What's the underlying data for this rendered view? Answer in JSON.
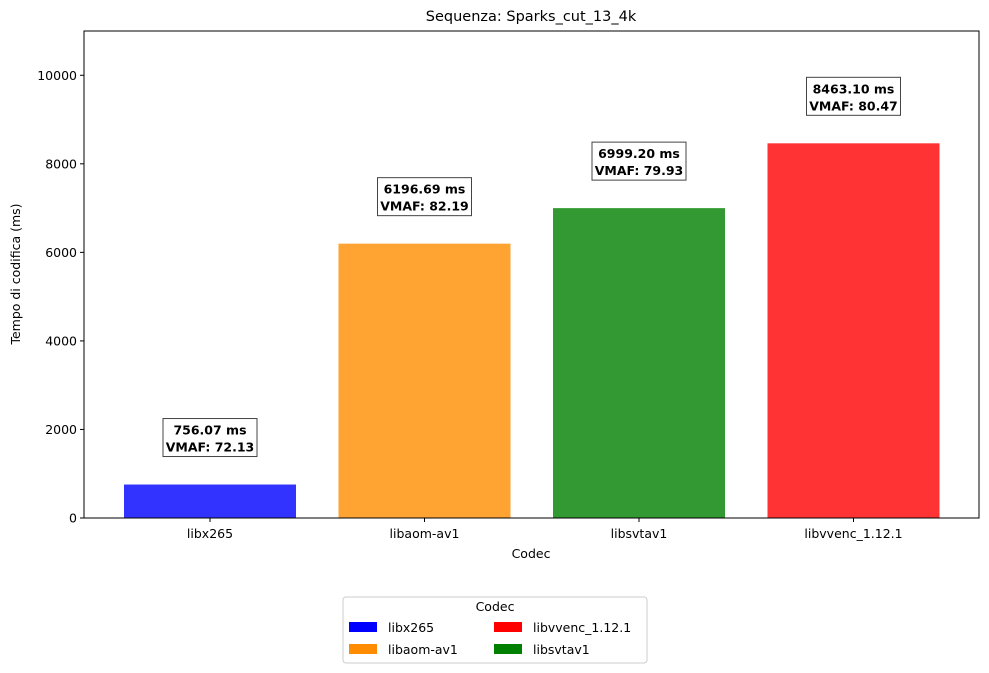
{
  "chart_data": {
    "type": "bar",
    "title": "Sequenza: Sparks_cut_13_4k",
    "xlabel": "Codec",
    "ylabel": "Tempo di codifica (ms)",
    "ylim": [
      0,
      11000
    ],
    "yticks": [
      "0",
      "2000",
      "4000",
      "6000",
      "8000",
      "10000"
    ],
    "grid": false,
    "categories": [
      "libx265",
      "libaom-av1",
      "libsvtav1",
      "libvvenc_1.12.1"
    ],
    "values": [
      756.07,
      6196.69,
      6999.2,
      8463.1
    ],
    "colors": [
      "#3333ff",
      "#ffa333",
      "#339933",
      "#ff3333"
    ],
    "annotations": [
      {
        "line1": "756.07 ms",
        "line2": "VMAF: 72.13"
      },
      {
        "line1": "6196.69 ms",
        "line2": "VMAF: 82.19"
      },
      {
        "line1": "6999.20 ms",
        "line2": "VMAF: 79.93"
      },
      {
        "line1": "8463.10 ms",
        "line2": "VMAF: 80.47"
      }
    ],
    "legend": {
      "title": "Codec",
      "placement": "bottom-center, below plot",
      "entries": [
        {
          "label": "libx265",
          "color": "#0000ff"
        },
        {
          "label": "libaom-av1",
          "color": "#ff8c00"
        },
        {
          "label": "libvvenc_1.12.1",
          "color": "#ff0000"
        },
        {
          "label": "libsvtav1",
          "color": "#008000"
        }
      ]
    }
  }
}
